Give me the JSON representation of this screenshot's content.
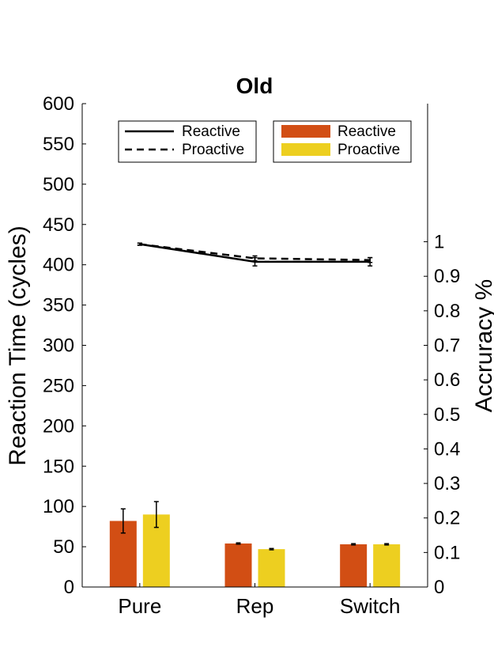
{
  "chart_data": {
    "type": "bar",
    "title": "Old",
    "categories": [
      "Pure",
      "Rep",
      "Switch"
    ],
    "ylabel": "Reaction Time (cycles)",
    "y2label": "Accruracy %",
    "ylim": [
      0,
      600
    ],
    "yticks": [
      0,
      50,
      100,
      150,
      200,
      250,
      300,
      350,
      400,
      450,
      500,
      550,
      600
    ],
    "y2lim": [
      0,
      1.4
    ],
    "y2ticks": [
      0,
      0.1,
      0.2,
      0.3,
      0.4,
      0.5,
      0.6,
      0.7,
      0.8,
      0.9,
      1
    ],
    "y2tick_labels": [
      "0",
      "0.1",
      "0.2",
      "0.3",
      "0.4",
      "0.5",
      "0.6",
      "0.7",
      "0.8",
      "0.9",
      "1"
    ],
    "bar_series": [
      {
        "name": "Reactive",
        "color": "#d24e14",
        "values": [
          82,
          54,
          53
        ],
        "errors": [
          15,
          0.8,
          0.8
        ]
      },
      {
        "name": "Proactive",
        "color": "#edcf20",
        "values": [
          90,
          47,
          53
        ],
        "errors": [
          16,
          0.8,
          0.8
        ]
      }
    ],
    "line_series": [
      {
        "name": "Reactive",
        "style": "solid",
        "values": [
          0.993,
          0.942,
          0.942
        ],
        "errors": [
          0.003,
          0.012,
          0.012
        ]
      },
      {
        "name": "Proactive",
        "style": "dashed",
        "values": [
          0.993,
          0.952,
          0.947
        ],
        "errors": [
          0.003,
          0.007,
          0.007
        ]
      }
    ],
    "legend_lines_position": "top-left",
    "legend_bars_position": "top-right",
    "grid": false
  }
}
